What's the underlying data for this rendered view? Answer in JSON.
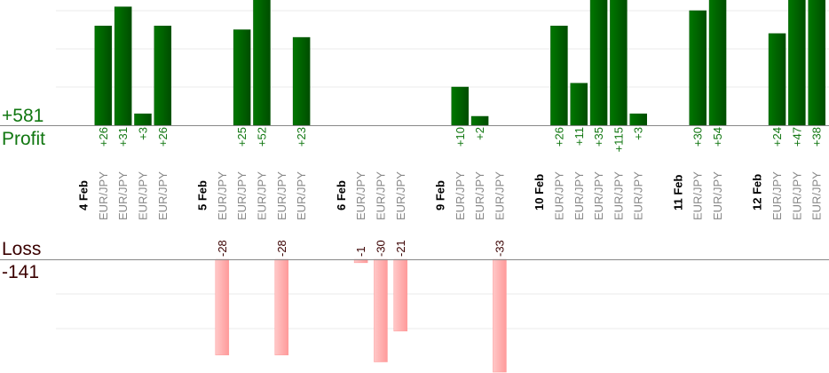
{
  "chart_data": {
    "type": "bar",
    "profit_total": "+581",
    "profit_label": "Profit",
    "loss_label": "Loss",
    "loss_total": "-141",
    "colors": {
      "profit": "#006600",
      "profit_text": "#117711",
      "loss": "#ffaaaa",
      "loss_text": "#3a0000",
      "pair_text": "#888888",
      "grid": "#e8e8e8",
      "axis": "#888888"
    },
    "grid": true,
    "days": [
      {
        "date": "4 Feb",
        "trades": [
          {
            "pair": "EUR/JPY",
            "value": 26
          },
          {
            "pair": "EUR/JPY",
            "value": 31
          },
          {
            "pair": "EUR/JPY",
            "value": 3
          },
          {
            "pair": "EUR/JPY",
            "value": 26
          }
        ]
      },
      {
        "date": "5 Feb",
        "trades": [
          {
            "pair": "EUR/JPY",
            "value": -28
          },
          {
            "pair": "EUR/JPY",
            "value": 25
          },
          {
            "pair": "EUR/JPY",
            "value": 52
          },
          {
            "pair": "EUR/JPY",
            "value": -28
          },
          {
            "pair": "EUR/JPY",
            "value": 23
          }
        ]
      },
      {
        "date": "6 Feb",
        "trades": [
          {
            "pair": "EUR/JPY",
            "value": -1
          },
          {
            "pair": "EUR/JPY",
            "value": -30
          },
          {
            "pair": "EUR/JPY",
            "value": -21
          }
        ]
      },
      {
        "date": "9 Feb",
        "trades": [
          {
            "pair": "EUR/JPY",
            "value": 10
          },
          {
            "pair": "EUR/JPY",
            "value": 2
          },
          {
            "pair": "EUR/JPY",
            "value": -33
          }
        ]
      },
      {
        "date": "10 Feb",
        "trades": [
          {
            "pair": "EUR/JPY",
            "value": 26
          },
          {
            "pair": "EUR/JPY",
            "value": 11
          },
          {
            "pair": "EUR/JPY",
            "value": 35
          },
          {
            "pair": "EUR/JPY",
            "value": 115
          },
          {
            "pair": "EUR/JPY",
            "value": 3
          }
        ]
      },
      {
        "date": "11 Feb",
        "trades": [
          {
            "pair": "EUR/JPY",
            "value": 30
          },
          {
            "pair": "EUR/JPY",
            "value": 54
          }
        ]
      },
      {
        "date": "12 Feb",
        "trades": [
          {
            "pair": "EUR/JPY",
            "value": 24
          },
          {
            "pair": "EUR/JPY",
            "value": 47
          },
          {
            "pair": "EUR/JPY",
            "value": 38
          }
        ]
      }
    ]
  }
}
